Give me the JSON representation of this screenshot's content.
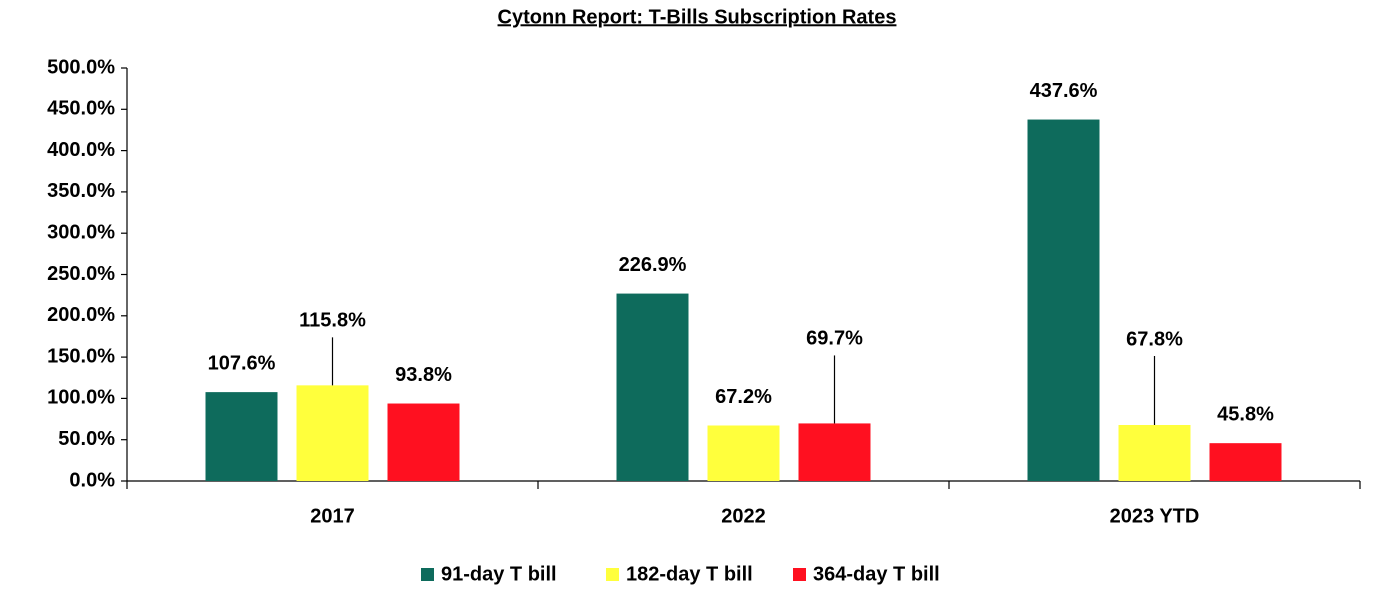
{
  "chart_data": {
    "type": "bar",
    "title": "Cytonn Report:  T-Bills Subscription Rates",
    "categories": [
      "2017",
      "2022",
      "2023 YTD"
    ],
    "series": [
      {
        "name": "91-day T bill",
        "color": "#0e6b5c",
        "values": [
          107.6,
          226.9,
          437.6
        ],
        "value_labels": [
          "107.6%",
          "226.9%",
          "437.6%"
        ]
      },
      {
        "name": "182-day T bill",
        "color": "#ffff3c",
        "values": [
          115.8,
          67.2,
          67.8
        ],
        "value_labels": [
          "115.8%",
          "67.2%",
          "67.8%"
        ]
      },
      {
        "name": "364-day T bill",
        "color": "#ff1020",
        "values": [
          93.8,
          69.7,
          45.8
        ],
        "value_labels": [
          "93.8%",
          "69.7%",
          "45.8%"
        ]
      }
    ],
    "ylim": [
      0,
      500
    ],
    "yticks": [
      {
        "value": 0,
        "label": "0.0%"
      },
      {
        "value": 50,
        "label": "50.0%"
      },
      {
        "value": 100,
        "label": "100.0%"
      },
      {
        "value": 150,
        "label": "150.0%"
      },
      {
        "value": 200,
        "label": "200.0%"
      },
      {
        "value": 250,
        "label": "250.0%"
      },
      {
        "value": 300,
        "label": "300.0%"
      },
      {
        "value": 350,
        "label": "350.0%"
      },
      {
        "value": 400,
        "label": "400.0%"
      },
      {
        "value": 450,
        "label": "450.0%"
      },
      {
        "value": 500,
        "label": "500.0%"
      }
    ],
    "grid": false,
    "legend": "bottom"
  }
}
